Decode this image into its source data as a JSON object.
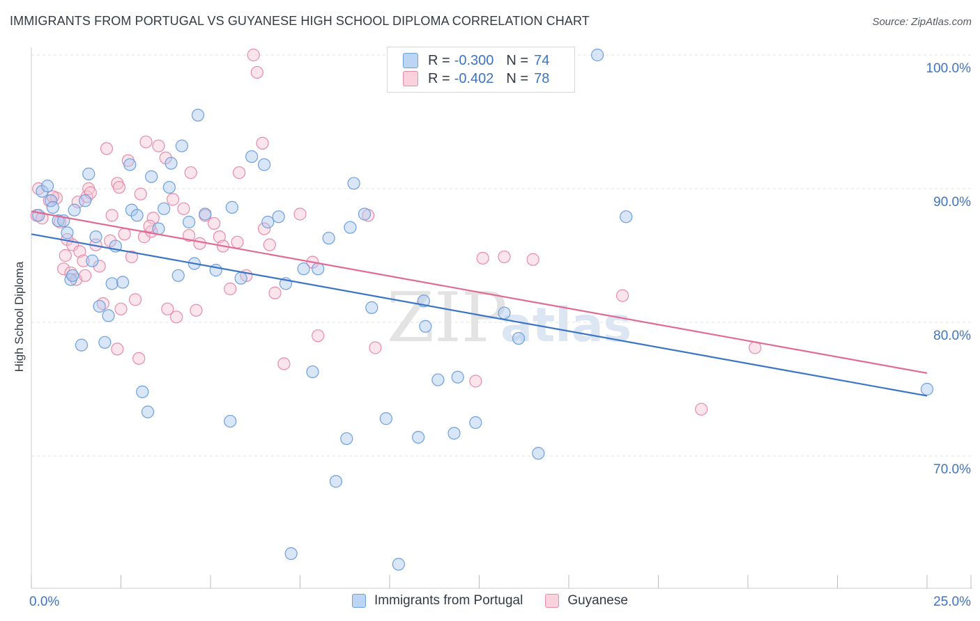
{
  "title": "IMMIGRANTS FROM PORTUGAL VS GUYANESE HIGH SCHOOL DIPLOMA CORRELATION CHART",
  "source": "Source: ZipAtlas.com",
  "watermark": {
    "zip": "ZIP",
    "atlas": "atlas"
  },
  "legend": {
    "r_label": "R =",
    "n_label": "N =",
    "rows": [
      {
        "r": "-0.300",
        "n": "74",
        "color": "#a9c8f0",
        "border": "#6b9fe0"
      },
      {
        "r": "-0.402",
        "n": "78",
        "color": "#f7c6d5",
        "border": "#e88aa8"
      }
    ]
  },
  "chart_data": {
    "type": "scatter",
    "title": "IMMIGRANTS FROM PORTUGAL VS GUYANESE HIGH SCHOOL DIPLOMA CORRELATION CHART",
    "xlabel": "",
    "ylabel": "High School Diploma",
    "xlim": [
      0,
      25
    ],
    "ylim": [
      62,
      101.5
    ],
    "x_tick_labels": [
      "0.0%",
      "25.0%"
    ],
    "y_ticks": [
      70,
      80,
      90,
      100
    ],
    "y_tick_labels": [
      "70.0%",
      "80.0%",
      "90.0%",
      "100.0%"
    ],
    "grid": true,
    "colors": {
      "blue": "#3b74c7",
      "pink": "#e06a94",
      "axis_text": "#3b74c7"
    },
    "series": [
      {
        "name": "Immigrants from Portugal",
        "fill": "#a9c8f0",
        "stroke": "#6b9fe0",
        "line_color": "#3b74c7",
        "trend": {
          "x0": 0,
          "y0": 86.6,
          "x1": 25,
          "y1": 74.5
        },
        "points": [
          [
            0.2,
            88.0
          ],
          [
            0.3,
            89.8
          ],
          [
            0.45,
            90.2
          ],
          [
            0.55,
            89.1
          ],
          [
            0.6,
            88.6
          ],
          [
            0.75,
            87.6
          ],
          [
            0.9,
            87.6
          ],
          [
            1.1,
            83.2
          ],
          [
            1.15,
            83.5
          ],
          [
            1.2,
            88.4
          ],
          [
            1.4,
            78.3
          ],
          [
            1.5,
            89.1
          ],
          [
            1.6,
            91.1
          ],
          [
            1.7,
            84.6
          ],
          [
            1.8,
            86.4
          ],
          [
            1.9,
            81.2
          ],
          [
            2.05,
            78.5
          ],
          [
            2.15,
            80.5
          ],
          [
            2.25,
            82.9
          ],
          [
            2.35,
            85.7
          ],
          [
            2.55,
            83.0
          ],
          [
            2.75,
            91.8
          ],
          [
            2.8,
            88.4
          ],
          [
            2.95,
            88.0
          ],
          [
            3.1,
            74.8
          ],
          [
            3.25,
            73.3
          ],
          [
            3.35,
            90.9
          ],
          [
            3.55,
            87.0
          ],
          [
            3.7,
            88.5
          ],
          [
            3.85,
            90.1
          ],
          [
            3.9,
            91.9
          ],
          [
            4.1,
            83.5
          ],
          [
            4.2,
            93.2
          ],
          [
            4.4,
            87.5
          ],
          [
            4.55,
            84.4
          ],
          [
            4.65,
            95.5
          ],
          [
            4.85,
            88.1
          ],
          [
            5.15,
            83.9
          ],
          [
            5.55,
            72.6
          ],
          [
            5.6,
            88.6
          ],
          [
            6.15,
            92.4
          ],
          [
            6.5,
            91.8
          ],
          [
            6.6,
            87.5
          ],
          [
            5.85,
            83.3
          ],
          [
            6.9,
            87.9
          ],
          [
            7.1,
            82.9
          ],
          [
            7.25,
            62.7
          ],
          [
            7.6,
            84.0
          ],
          [
            7.85,
            76.3
          ],
          [
            8.0,
            84.0
          ],
          [
            8.3,
            86.3
          ],
          [
            8.5,
            68.1
          ],
          [
            8.8,
            71.3
          ],
          [
            8.9,
            87.1
          ],
          [
            9.0,
            90.4
          ],
          [
            9.3,
            88.1
          ],
          [
            9.5,
            81.1
          ],
          [
            9.9,
            72.8
          ],
          [
            10.25,
            61.9
          ],
          [
            10.8,
            71.4
          ],
          [
            11.0,
            79.7
          ],
          [
            10.95,
            81.6
          ],
          [
            11.35,
            75.7
          ],
          [
            11.8,
            71.7
          ],
          [
            11.9,
            75.9
          ],
          [
            12.4,
            72.5
          ],
          [
            13.2,
            80.7
          ],
          [
            13.6,
            78.8
          ],
          [
            14.15,
            70.2
          ],
          [
            15.8,
            100.0
          ],
          [
            16.6,
            87.9
          ],
          [
            25.0,
            75.0
          ],
          [
            12.9,
            99.7
          ],
          [
            1.0,
            86.7
          ]
        ]
      },
      {
        "name": "Guyanese",
        "fill": "#f7c6d5",
        "stroke": "#e88aa8",
        "line_color": "#e06a94",
        "trend": {
          "x0": 0,
          "y0": 88.3,
          "x1": 25,
          "y1": 76.2
        },
        "points": [
          [
            0.15,
            88.0
          ],
          [
            0.2,
            90.0
          ],
          [
            0.3,
            87.8
          ],
          [
            0.5,
            89.1
          ],
          [
            0.7,
            89.3
          ],
          [
            0.8,
            87.5
          ],
          [
            0.9,
            84.0
          ],
          [
            0.95,
            85.0
          ],
          [
            1.0,
            86.2
          ],
          [
            1.1,
            83.7
          ],
          [
            1.15,
            85.8
          ],
          [
            1.25,
            83.2
          ],
          [
            1.35,
            85.3
          ],
          [
            1.45,
            84.6
          ],
          [
            1.5,
            83.5
          ],
          [
            1.55,
            89.4
          ],
          [
            1.6,
            90.0
          ],
          [
            1.65,
            89.7
          ],
          [
            1.8,
            85.8
          ],
          [
            1.9,
            84.2
          ],
          [
            2.0,
            81.4
          ],
          [
            2.1,
            93.0
          ],
          [
            2.2,
            86.1
          ],
          [
            2.25,
            88.0
          ],
          [
            2.4,
            90.4
          ],
          [
            2.45,
            90.1
          ],
          [
            2.5,
            81.0
          ],
          [
            2.6,
            86.6
          ],
          [
            2.7,
            92.1
          ],
          [
            2.8,
            84.9
          ],
          [
            2.9,
            81.7
          ],
          [
            3.0,
            77.3
          ],
          [
            3.05,
            89.6
          ],
          [
            3.15,
            86.4
          ],
          [
            3.2,
            93.5
          ],
          [
            3.35,
            86.8
          ],
          [
            3.4,
            87.8
          ],
          [
            3.55,
            93.2
          ],
          [
            3.75,
            92.3
          ],
          [
            3.8,
            81.0
          ],
          [
            3.95,
            89.2
          ],
          [
            4.05,
            80.4
          ],
          [
            4.25,
            88.5
          ],
          [
            4.4,
            86.5
          ],
          [
            4.45,
            91.2
          ],
          [
            4.6,
            80.9
          ],
          [
            4.7,
            85.9
          ],
          [
            4.85,
            88.0
          ],
          [
            5.1,
            87.4
          ],
          [
            5.25,
            86.4
          ],
          [
            5.35,
            85.7
          ],
          [
            5.55,
            82.5
          ],
          [
            5.75,
            86.0
          ],
          [
            5.8,
            91.2
          ],
          [
            6.0,
            83.5
          ],
          [
            6.2,
            100.0
          ],
          [
            6.3,
            98.7
          ],
          [
            6.45,
            93.4
          ],
          [
            6.5,
            87.0
          ],
          [
            6.65,
            85.8
          ],
          [
            6.8,
            82.2
          ],
          [
            7.05,
            76.9
          ],
          [
            7.5,
            88.1
          ],
          [
            8.0,
            79.0
          ],
          [
            7.85,
            84.5
          ],
          [
            9.4,
            88.0
          ],
          [
            9.6,
            78.1
          ],
          [
            12.4,
            75.6
          ],
          [
            12.6,
            84.8
          ],
          [
            13.2,
            84.9
          ],
          [
            14.0,
            84.7
          ],
          [
            16.5,
            82.0
          ],
          [
            18.7,
            73.5
          ],
          [
            20.2,
            78.1
          ],
          [
            1.3,
            89.0
          ],
          [
            2.4,
            78.0
          ],
          [
            3.3,
            87.2
          ],
          [
            0.6,
            89.4
          ]
        ]
      }
    ]
  }
}
